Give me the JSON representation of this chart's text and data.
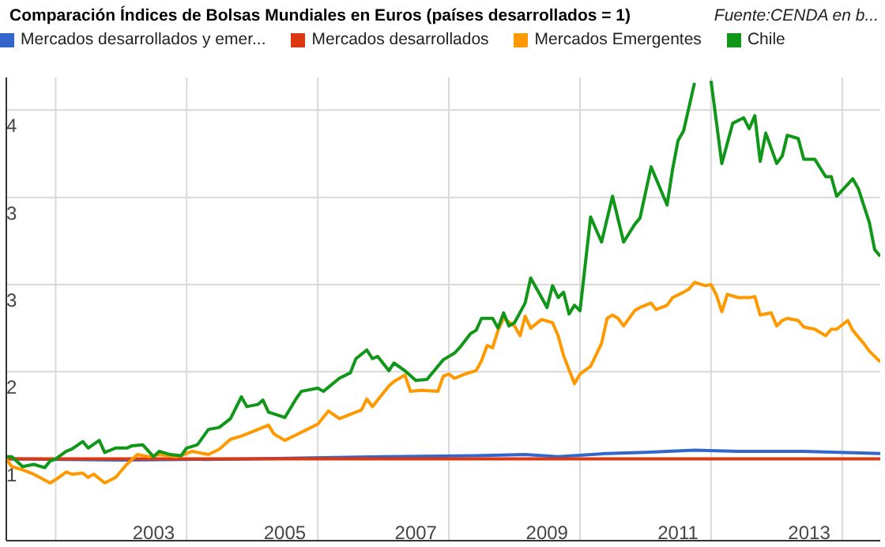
{
  "chart_data": {
    "type": "line",
    "title": "Comparación Índices de Bolsas Mundiales en Euros (países desarrollados = 1)",
    "annotations": [
      "Fuente:CENDA en b..."
    ],
    "xlim": [
      "2001-04",
      "2014-08"
    ],
    "xticks": [
      {
        "value": "2002-01",
        "label": null
      },
      {
        "value": "2003-07",
        "label": "2003"
      },
      {
        "value": "2004-01",
        "label": null
      },
      {
        "value": "2005-07",
        "label": "2005"
      },
      {
        "value": "2006-01",
        "label": null
      },
      {
        "value": "2007-07",
        "label": "2007"
      },
      {
        "value": "2008-01",
        "label": null
      },
      {
        "value": "2009-07",
        "label": "2009"
      },
      {
        "value": "2010-01",
        "label": null
      },
      {
        "value": "2011-07",
        "label": "2011"
      },
      {
        "value": "2012-01",
        "label": null
      },
      {
        "value": "2013-07",
        "label": "2013"
      },
      {
        "value": "2014-01",
        "label": null
      }
    ],
    "ylim": [
      0.25,
      4.5
    ],
    "yticks": [
      1,
      {
        "value": 1.8,
        "label": "2"
      },
      {
        "value": 2.6,
        "label": "3"
      },
      {
        "value": 3.4,
        "label": "3"
      },
      {
        "value": 4.2,
        "label": "4"
      }
    ],
    "grid": true,
    "legend": "top",
    "series": [
      {
        "name": "Mercados desarrollados y emer...",
        "color": "#3366cc",
        "x": [
          "2001-04",
          "2003-01",
          "2005-01",
          "2007-01",
          "2008-06",
          "2009-03",
          "2009-09",
          "2010-06",
          "2011-01",
          "2011-10",
          "2012-06",
          "2013-06",
          "2014-08"
        ],
        "values": [
          1.0,
          0.99,
          1.0,
          1.02,
          1.03,
          1.04,
          1.02,
          1.05,
          1.06,
          1.08,
          1.07,
          1.07,
          1.05
        ]
      },
      {
        "name": "Mercados desarrollados",
        "color": "#dc3912",
        "x": [
          "2001-04",
          "2014-08"
        ],
        "values": [
          1,
          1
        ]
      },
      {
        "name": "Mercados Emergentes",
        "color": "#ff9900",
        "x": [
          "2001-04",
          "2001-05",
          "2001-07",
          "2001-09",
          "2001-12",
          "2002-01",
          "2002-03",
          "2002-04",
          "2002-06",
          "2002-07",
          "2002-08",
          "2002-10",
          "2002-12",
          "2003-02",
          "2003-04",
          "2003-06",
          "2003-08",
          "2003-11",
          "2003-12",
          "2004-02",
          "2004-05",
          "2004-07",
          "2004-09",
          "2004-11",
          "2005-01",
          "2005-04",
          "2005-05",
          "2005-07",
          "2005-09",
          "2005-11",
          "2006-01",
          "2006-03",
          "2006-05",
          "2006-06",
          "2006-09",
          "2006-10",
          "2006-11",
          "2007-02",
          "2007-03",
          "2007-05",
          "2007-06",
          "2007-08",
          "2007-11",
          "2007-12",
          "2008-01",
          "2008-02",
          "2008-04",
          "2008-06",
          "2008-07",
          "2008-08",
          "2008-09",
          "2008-10",
          "2008-11",
          "2009-01",
          "2009-02",
          "2009-03",
          "2009-04",
          "2009-06",
          "2009-08",
          "2009-09",
          "2009-10",
          "2009-12",
          "2010-01",
          "2010-03",
          "2010-05",
          "2010-06",
          "2010-07",
          "2010-08",
          "2010-09",
          "2010-11",
          "2010-12",
          "2011-02",
          "2011-03",
          "2011-05",
          "2011-06",
          "2011-08",
          "2011-09",
          "2011-10",
          "2011-12",
          "2012-01",
          "2012-02",
          "2012-03",
          "2012-04",
          "2012-06",
          "2012-08",
          "2012-09",
          "2012-10",
          "2012-12",
          "2013-01",
          "2013-02",
          "2013-03",
          "2013-05",
          "2013-06",
          "2013-08",
          "2013-10",
          "2013-11",
          "2013-12",
          "2014-02",
          "2014-03",
          "2014-05",
          "2014-06",
          "2014-08"
        ],
        "values": [
          1.0,
          0.93,
          0.9,
          0.86,
          0.78,
          0.81,
          0.88,
          0.86,
          0.87,
          0.83,
          0.86,
          0.78,
          0.83,
          0.95,
          1.04,
          1.02,
          1.04,
          1.02,
          1.03,
          1.07,
          1.04,
          1.09,
          1.18,
          1.21,
          1.25,
          1.31,
          1.23,
          1.17,
          1.22,
          1.27,
          1.32,
          1.44,
          1.37,
          1.39,
          1.45,
          1.55,
          1.48,
          1.67,
          1.71,
          1.77,
          1.62,
          1.63,
          1.62,
          1.76,
          1.78,
          1.74,
          1.78,
          1.81,
          1.9,
          2.04,
          2.02,
          2.18,
          2.29,
          2.22,
          2.13,
          2.31,
          2.2,
          2.28,
          2.25,
          2.13,
          1.95,
          1.69,
          1.78,
          1.85,
          2.06,
          2.29,
          2.32,
          2.29,
          2.22,
          2.36,
          2.39,
          2.43,
          2.37,
          2.41,
          2.48,
          2.53,
          2.56,
          2.62,
          2.59,
          2.6,
          2.5,
          2.35,
          2.51,
          2.48,
          2.48,
          2.49,
          2.32,
          2.34,
          2.22,
          2.27,
          2.29,
          2.27,
          2.21,
          2.19,
          2.13,
          2.19,
          2.19,
          2.27,
          2.18,
          2.06,
          1.99,
          1.89
        ]
      },
      {
        "name": "Chile",
        "color": "#109618",
        "x": [
          "2001-04",
          "2001-05",
          "2001-07",
          "2001-09",
          "2001-11",
          "2001-12",
          "2002-01",
          "2002-03",
          "2002-04",
          "2002-06",
          "2002-07",
          "2002-09",
          "2002-10",
          "2002-12",
          "2003-02",
          "2003-03",
          "2003-05",
          "2003-07",
          "2003-08",
          "2003-10",
          "2003-12",
          "2004-01",
          "2004-03",
          "2004-05",
          "2004-07",
          "2004-09",
          "2004-11",
          "2004-12",
          "2005-02",
          "2005-03",
          "2005-04",
          "2005-07",
          "2005-09",
          "2005-10",
          "2006-01",
          "2006-02",
          "2006-05",
          "2006-07",
          "2006-08",
          "2006-10",
          "2006-11",
          "2006-12",
          "2007-02",
          "2007-03",
          "2007-05",
          "2007-07",
          "2007-09",
          "2007-12",
          "2008-02",
          "2008-03",
          "2008-05",
          "2008-06",
          "2008-07",
          "2008-09",
          "2008-10",
          "2008-11",
          "2008-12",
          "2009-01",
          "2009-03",
          "2009-04",
          "2009-06",
          "2009-07",
          "2009-08",
          "2009-09",
          "2009-10",
          "2009-11",
          "2009-12",
          "2010-01",
          "2010-03",
          "2010-05",
          "2010-07",
          "2010-09",
          "2010-11",
          "2010-12",
          "2011-02",
          "2011-05",
          "2011-06",
          "2011-07",
          "2011-08",
          "2011-10",
          "2011-11",
          "2011-12",
          "2012-01",
          "2012-02",
          "2012-03",
          "2012-05",
          "2012-07",
          "2012-08",
          "2012-09",
          "2012-10",
          "2012-11",
          "2013-01",
          "2013-02",
          "2013-03",
          "2013-05",
          "2013-06",
          "2013-08",
          "2013-10",
          "2013-11",
          "2013-12",
          "2014-03",
          "2014-04",
          "2014-06",
          "2014-07",
          "2014-08"
        ],
        "values": [
          1.02,
          1.02,
          0.93,
          0.95,
          0.92,
          0.98,
          1.0,
          1.07,
          1.09,
          1.16,
          1.1,
          1.17,
          1.06,
          1.1,
          1.1,
          1.12,
          1.13,
          1.02,
          1.07,
          1.04,
          1.03,
          1.1,
          1.13,
          1.27,
          1.29,
          1.37,
          1.57,
          1.48,
          1.5,
          1.54,
          1.43,
          1.38,
          1.55,
          1.62,
          1.65,
          1.62,
          1.74,
          1.79,
          1.92,
          2.0,
          1.92,
          1.94,
          1.81,
          1.88,
          1.81,
          1.72,
          1.73,
          1.91,
          1.97,
          2.02,
          2.15,
          2.18,
          2.29,
          2.29,
          2.2,
          2.34,
          2.22,
          2.25,
          2.43,
          2.66,
          2.48,
          2.39,
          2.59,
          2.48,
          2.53,
          2.33,
          2.41,
          2.36,
          3.22,
          2.99,
          3.41,
          2.99,
          3.15,
          3.21,
          3.68,
          3.33,
          3.66,
          3.92,
          4.01,
          4.45,
          null,
          null,
          4.47,
          4.08,
          3.71,
          4.08,
          4.13,
          4.03,
          4.15,
          3.73,
          3.99,
          3.71,
          3.78,
          3.97,
          3.94,
          3.75,
          3.75,
          3.59,
          3.59,
          3.41,
          3.57,
          3.48,
          3.17,
          2.92,
          2.86
        ]
      }
    ]
  }
}
